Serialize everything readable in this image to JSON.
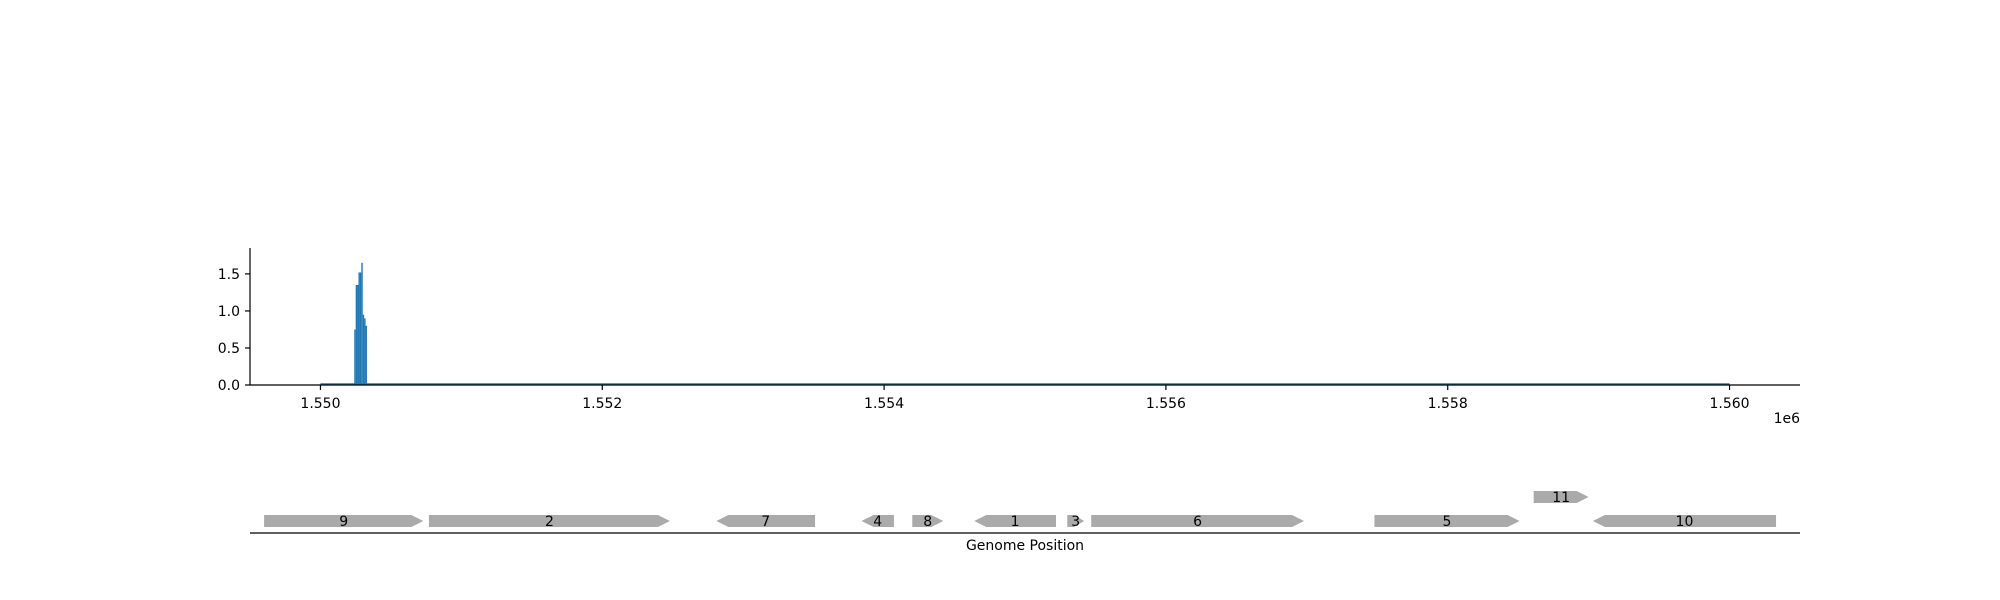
{
  "chart_data": [
    {
      "type": "bar",
      "xlim": [
        1549500,
        1560500
      ],
      "ylim": [
        0,
        1.85
      ],
      "x_ticks": [
        1550000,
        1552000,
        1554000,
        1556000,
        1558000,
        1560000
      ],
      "x_tick_labels": [
        "1.550",
        "1.552",
        "1.554",
        "1.556",
        "1.558",
        "1.560"
      ],
      "x_offset_label": "1e6",
      "y_ticks": [
        0.0,
        0.5,
        1.0,
        1.5
      ],
      "y_tick_labels": [
        "0.0",
        "0.5",
        "1.0",
        "1.5"
      ],
      "baseline_range": [
        1550000,
        1560000
      ],
      "bar_width": 10,
      "bars": [
        {
          "x": 1550240,
          "y": 0.75
        },
        {
          "x": 1550250,
          "y": 1.35
        },
        {
          "x": 1550260,
          "y": 1.35
        },
        {
          "x": 1550270,
          "y": 1.52
        },
        {
          "x": 1550280,
          "y": 1.52
        },
        {
          "x": 1550290,
          "y": 1.65
        },
        {
          "x": 1550300,
          "y": 0.95
        },
        {
          "x": 1550310,
          "y": 0.9
        },
        {
          "x": 1550320,
          "y": 0.8
        }
      ],
      "series_color": "#1f77b4",
      "grid": false
    },
    {
      "type": "gene_track",
      "xlim": [
        1549500,
        1560500
      ],
      "xlabel": "Genome Position",
      "gene_color": "#aaaaaa",
      "genes": [
        {
          "label": "9",
          "start": 1549600,
          "end": 1550730,
          "strand": 1,
          "row": 0
        },
        {
          "label": "2",
          "start": 1550770,
          "end": 1552480,
          "strand": 1,
          "row": 0
        },
        {
          "label": "7",
          "start": 1552810,
          "end": 1553510,
          "strand": -1,
          "row": 0
        },
        {
          "label": "4",
          "start": 1553840,
          "end": 1554070,
          "strand": -1,
          "row": 0
        },
        {
          "label": "8",
          "start": 1554200,
          "end": 1554420,
          "strand": 1,
          "row": 0
        },
        {
          "label": "1",
          "start": 1554640,
          "end": 1555220,
          "strand": -1,
          "row": 0
        },
        {
          "label": "3",
          "start": 1555300,
          "end": 1555420,
          "strand": 1,
          "row": 0
        },
        {
          "label": "6",
          "start": 1555470,
          "end": 1556980,
          "strand": 1,
          "row": 0
        },
        {
          "label": "5",
          "start": 1557480,
          "end": 1558510,
          "strand": 1,
          "row": 0
        },
        {
          "label": "11",
          "start": 1558610,
          "end": 1559000,
          "strand": 1,
          "row": 1
        },
        {
          "label": "10",
          "start": 1559030,
          "end": 1560330,
          "strand": -1,
          "row": 0
        }
      ]
    }
  ]
}
